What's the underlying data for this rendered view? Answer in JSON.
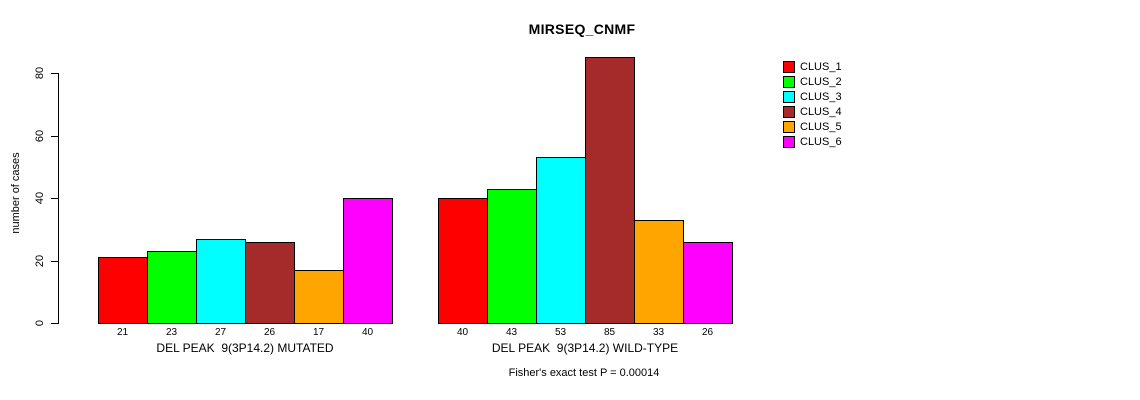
{
  "chart_data": {
    "type": "bar",
    "title": "MIRSEQ_CNMF",
    "xlabel": "",
    "ylabel": "number of cases",
    "ylim": [
      0,
      85
    ],
    "yticks": [
      0,
      20,
      40,
      60,
      80
    ],
    "grid": false,
    "legend_position": "right",
    "bar_borders": true,
    "categories": [
      "DEL PEAK  9(3P14.2) MUTATED",
      "DEL PEAK  9(3P14.2) WILD-TYPE"
    ],
    "series": [
      {
        "name": "CLUS_1",
        "color": "#FF0000",
        "values": [
          21,
          40
        ]
      },
      {
        "name": "CLUS_2",
        "color": "#00FF00",
        "values": [
          23,
          43
        ]
      },
      {
        "name": "CLUS_3",
        "color": "#00FFFF",
        "values": [
          27,
          53
        ]
      },
      {
        "name": "CLUS_4",
        "color": "#A52A2A",
        "values": [
          26,
          85
        ]
      },
      {
        "name": "CLUS_5",
        "color": "#FFA500",
        "values": [
          17,
          33
        ]
      },
      {
        "name": "CLUS_6",
        "color": "#FF00FF",
        "values": [
          40,
          26
        ]
      }
    ],
    "bar_value_labels_shown": true,
    "annotation": "Fisher's exact test P = 0.00014"
  },
  "colors": {
    "background": "#FFFFFF",
    "axis": "#000000",
    "text": "#000000"
  }
}
